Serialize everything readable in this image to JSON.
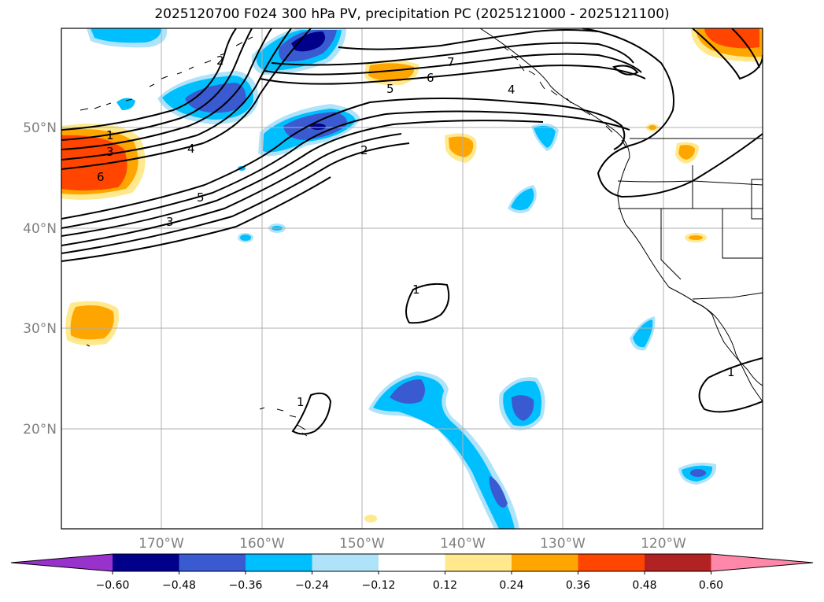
{
  "title": "2025120700 F024 300 hPa PV, precipitation PC (2025121000 - 2025121100)",
  "lat_labels": [
    "50°N",
    "40°N",
    "30°N",
    "20°N"
  ],
  "lon_labels": [
    "170°W",
    "160°W",
    "150°W",
    "140°W",
    "130°W",
    "120°W"
  ],
  "colorbar": {
    "ticks": [
      "−0.60",
      "−0.48",
      "−0.36",
      "−0.24",
      "−0.12",
      "0.12",
      "0.24",
      "0.36",
      "0.48",
      "0.60"
    ],
    "colors": [
      "#9932cc",
      "#00008b",
      "#3a5ad1",
      "#00bfff",
      "#afe3fa",
      "#ffffff",
      "#ffe98c",
      "#ffa500",
      "#ff4500",
      "#b22222",
      "#ff88aa"
    ]
  },
  "pv_labels": {
    "a": "1",
    "b": "3",
    "c": "6",
    "d": "4",
    "e": "5",
    "f": "3",
    "g": "2",
    "h": "7",
    "i": "6",
    "j": "5",
    "k": "4",
    "l": "2",
    "m": "1",
    "n": "1",
    "o": "1"
  },
  "colors": {
    "frame": "#000000",
    "grid": "#b0b0b0",
    "label": "#808080"
  }
}
